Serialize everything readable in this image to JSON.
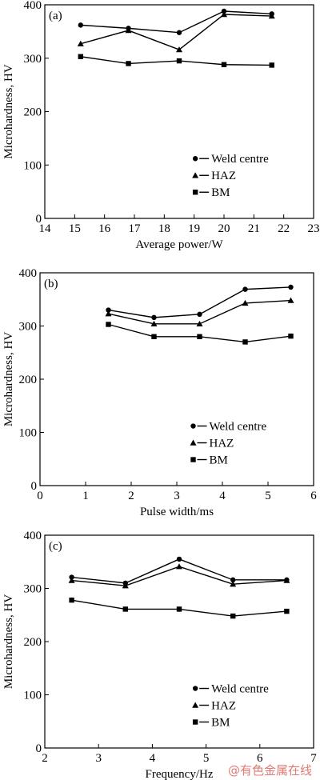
{
  "chart_data": [
    {
      "type": "line",
      "panel_label": "(a)",
      "xlabel": "Average power/W",
      "ylabel": "Microhardness, HV",
      "xlim": [
        14,
        23
      ],
      "ylim": [
        0,
        400
      ],
      "x_ticks": [
        14,
        15,
        16,
        17,
        18,
        19,
        20,
        21,
        22,
        23
      ],
      "y_ticks": [
        0,
        100,
        200,
        300,
        400
      ],
      "legend_position": "bottom-right",
      "series": [
        {
          "name": "Weld centre",
          "marker": "circle",
          "x": [
            15.2,
            16.8,
            18.5,
            20.0,
            21.6
          ],
          "y": [
            362,
            356,
            348,
            388,
            383
          ]
        },
        {
          "name": "HAZ",
          "marker": "triangle",
          "x": [
            15.2,
            16.8,
            18.5,
            20.0,
            21.6
          ],
          "y": [
            327,
            352,
            316,
            382,
            379
          ]
        },
        {
          "name": "BM",
          "marker": "square",
          "x": [
            15.2,
            16.8,
            18.5,
            20.0,
            21.6
          ],
          "y": [
            303,
            290,
            295,
            288,
            287
          ]
        }
      ]
    },
    {
      "type": "line",
      "panel_label": "(b)",
      "xlabel": "Pulse width/ms",
      "ylabel": "Microhardness, HV",
      "xlim": [
        0,
        6
      ],
      "ylim": [
        0,
        400
      ],
      "x_ticks": [
        0,
        1,
        2,
        3,
        4,
        5,
        6
      ],
      "y_ticks": [
        0,
        100,
        200,
        300,
        400
      ],
      "legend_position": "bottom-right",
      "series": [
        {
          "name": "Weld centre",
          "marker": "circle",
          "x": [
            1.5,
            2.5,
            3.5,
            4.5,
            5.5
          ],
          "y": [
            330,
            316,
            322,
            369,
            373
          ]
        },
        {
          "name": "HAZ",
          "marker": "triangle",
          "x": [
            1.5,
            2.5,
            3.5,
            4.5,
            5.5
          ],
          "y": [
            323,
            304,
            304,
            343,
            348
          ]
        },
        {
          "name": "BM",
          "marker": "square",
          "x": [
            1.5,
            2.5,
            3.5,
            4.5,
            5.5
          ],
          "y": [
            303,
            280,
            280,
            270,
            281
          ]
        }
      ]
    },
    {
      "type": "line",
      "panel_label": "(c)",
      "xlabel": "Frequency/Hz",
      "ylabel": "Microhardness, HV",
      "xlim": [
        2,
        7
      ],
      "ylim": [
        0,
        400
      ],
      "x_ticks": [
        2,
        3,
        4,
        5,
        6,
        7
      ],
      "y_ticks": [
        0,
        100,
        200,
        300,
        400
      ],
      "legend_position": "bottom-right",
      "series": [
        {
          "name": "Weld centre",
          "marker": "circle",
          "x": [
            2.5,
            3.5,
            4.5,
            5.5,
            6.5
          ],
          "y": [
            321,
            310,
            355,
            316,
            316
          ]
        },
        {
          "name": "HAZ",
          "marker": "triangle",
          "x": [
            2.5,
            3.5,
            4.5,
            5.5,
            6.5
          ],
          "y": [
            315,
            305,
            341,
            308,
            315
          ]
        },
        {
          "name": "BM",
          "marker": "square",
          "x": [
            2.5,
            3.5,
            4.5,
            5.5,
            6.5
          ],
          "y": [
            278,
            261,
            261,
            248,
            257
          ]
        }
      ]
    }
  ],
  "watermark": "@有色金属在线",
  "colors": {
    "ink": "#000000",
    "watermark": "#e07a74"
  }
}
